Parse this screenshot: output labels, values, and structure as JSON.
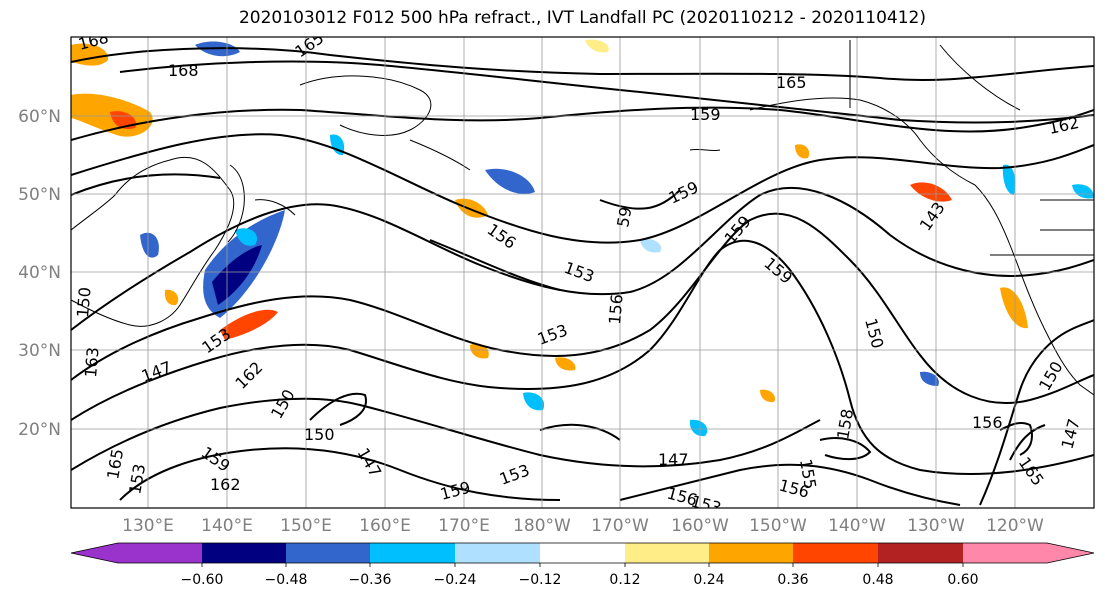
{
  "title": "2020103012 F012 500 hPa refract., IVT Landfall PC (2020110212 - 2020110412)",
  "map": {
    "lat_labels": [
      "60°N",
      "50°N",
      "40°N",
      "30°N",
      "20°N"
    ],
    "lon_labels": [
      "130°E",
      "140°E",
      "150°E",
      "160°E",
      "170°E",
      "180°W",
      "170°W",
      "160°W",
      "150°W",
      "140°W",
      "130°W",
      "120°W"
    ],
    "contour_labels": [
      "168",
      "165",
      "168",
      "165",
      "159",
      "162",
      "159",
      "59",
      "159",
      "156",
      "153",
      "159",
      "59",
      "156",
      "153",
      "150",
      "153",
      "147",
      "150",
      "150",
      "147",
      "162",
      "159",
      "162",
      "143",
      "150",
      "156",
      "158",
      "156",
      "147",
      "155",
      "147",
      "150",
      "156",
      "153",
      "159",
      "165",
      "153",
      "163",
      "153",
      "165"
    ],
    "colors": {
      "ocean": "#ffffff",
      "contour": "#000000",
      "coast": "#000000",
      "grid": "#9a9a9a",
      "axis_label": "#808080"
    }
  },
  "colorbar": {
    "tick_labels": [
      "−0.60",
      "−0.48",
      "−0.36",
      "−0.24",
      "−0.12",
      "0.12",
      "0.24",
      "0.36",
      "0.48",
      "0.60"
    ],
    "bins": [
      "#9933cc",
      "#000080",
      "#3366cc",
      "#00bfff",
      "#b0e0ff",
      "#ffffff",
      "#ffee88",
      "#ffa500",
      "#ff4500",
      "#b22222",
      "#ff88aa"
    ]
  }
}
